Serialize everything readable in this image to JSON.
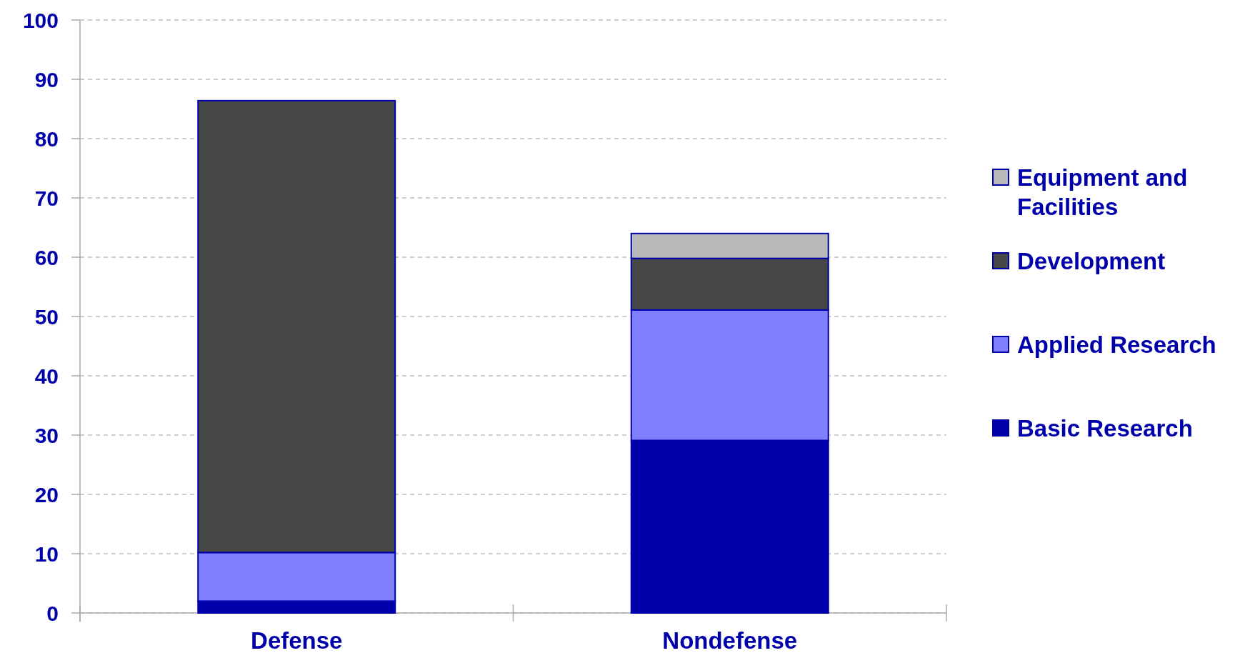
{
  "chart_data": {
    "type": "bar",
    "stacked": true,
    "categories": [
      "Defense",
      "Nondefense"
    ],
    "series": [
      {
        "name": "Basic Research",
        "color": "#0000aa",
        "values": [
          2.0,
          29.1
        ]
      },
      {
        "name": "Applied Research",
        "color": "#8080ff",
        "values": [
          8.2,
          22.0
        ]
      },
      {
        "name": "Development",
        "color": "#474747",
        "values": [
          76.2,
          8.7
        ]
      },
      {
        "name": "Equipment and Facilities",
        "color": "#b8b8b8",
        "values": [
          0,
          4.2
        ]
      }
    ],
    "ylim": [
      0,
      100
    ],
    "yticks": [
      0,
      10,
      20,
      30,
      40,
      50,
      60,
      70,
      80,
      90,
      100
    ],
    "grid": "y",
    "legend": "right"
  }
}
